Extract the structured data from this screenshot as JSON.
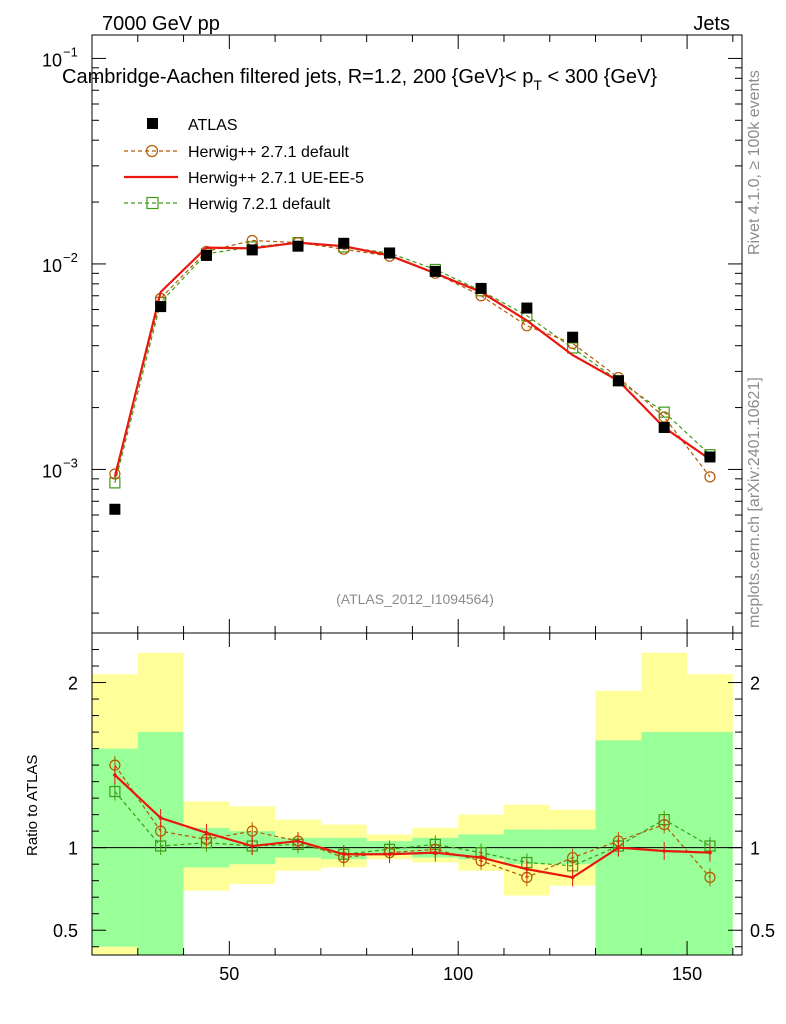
{
  "header": {
    "left": "7000 GeV pp",
    "right": "Jets"
  },
  "side": {
    "rivet": "Rivet 4.1.0, ≥ 100k events",
    "mcplots": "mcplots.cern.ch [arXiv:2401.10621]"
  },
  "chart_data": {
    "type": "line",
    "title": "Cambridge-Aachen filtered jets, R=1.2, 200 {GeV}< p_T < 300 {GeV}",
    "title_parts": {
      "main": "Cambridge-Aachen filtered jets, R=1.2, 200 {GeV}< p",
      "sub": "T",
      "tail": " < 300 {GeV}"
    },
    "watermark": "(ATLAS_2012_I1094564)",
    "x": [
      25,
      35,
      45,
      55,
      65,
      75,
      85,
      95,
      105,
      115,
      125,
      135,
      145,
      155
    ],
    "xlim": [
      20,
      162
    ],
    "xticks": [
      50,
      100,
      150
    ],
    "top": {
      "yscale": "log",
      "ylim": [
        0.00016,
        0.13
      ],
      "yticks": [
        {
          "base": "10",
          "exp": "−1",
          "value": 0.1
        },
        {
          "base": "10",
          "exp": "−2",
          "value": 0.01
        },
        {
          "base": "10",
          "exp": "−3",
          "value": 0.001
        }
      ]
    },
    "ratio": {
      "ylabel": "Ratio to ATLAS",
      "ylim": [
        0.35,
        2.3
      ],
      "yticks": [
        "0.5",
        "1",
        "2"
      ],
      "band_inner": [
        [
          0.4,
          1.6
        ],
        [
          0.35,
          1.7
        ],
        [
          0.88,
          1.12
        ],
        [
          0.9,
          1.1
        ],
        [
          0.94,
          1.06
        ],
        [
          0.93,
          1.06
        ],
        [
          0.96,
          1.04
        ],
        [
          0.94,
          1.06
        ],
        [
          0.93,
          1.08
        ],
        [
          0.9,
          1.11
        ],
        [
          0.9,
          1.11
        ],
        [
          0.35,
          1.65
        ],
        [
          0.35,
          1.7
        ],
        [
          0.35,
          1.7
        ]
      ],
      "band_outer": [
        [
          0.35,
          2.05
        ],
        [
          0.35,
          2.18
        ],
        [
          0.74,
          1.28
        ],
        [
          0.78,
          1.25
        ],
        [
          0.86,
          1.17
        ],
        [
          0.88,
          1.14
        ],
        [
          0.93,
          1.08
        ],
        [
          0.91,
          1.12
        ],
        [
          0.86,
          1.2
        ],
        [
          0.71,
          1.26
        ],
        [
          0.77,
          1.23
        ],
        [
          0.35,
          1.95
        ],
        [
          0.35,
          2.18
        ],
        [
          0.35,
          2.05
        ]
      ]
    },
    "series": [
      {
        "name": "ATLAS",
        "color": "#000000",
        "marker": "square-filled",
        "values": [
          0.00064,
          0.0062,
          0.011,
          0.0117,
          0.0122,
          0.0126,
          0.0113,
          0.0092,
          0.0076,
          0.0061,
          0.0044,
          0.0027,
          0.0016,
          0.00115
        ]
      },
      {
        "name": "Herwig++ 2.7.1 default",
        "color": "#b35900",
        "marker": "circle-open",
        "dash": "dashed",
        "values": [
          0.00095,
          0.0068,
          0.0115,
          0.013,
          0.0127,
          0.0118,
          0.0109,
          0.009,
          0.007,
          0.005,
          0.0041,
          0.0028,
          0.0018,
          0.00092
        ],
        "ratio": [
          1.5,
          1.1,
          1.05,
          1.1,
          1.04,
          0.94,
          0.97,
          0.99,
          0.92,
          0.82,
          0.94,
          1.04,
          1.14,
          0.82
        ]
      },
      {
        "name": "Herwig++ 2.7.1 UE-EE-5",
        "color": "#e8180f",
        "marker": "none",
        "dash": "solid",
        "values": [
          0.00092,
          0.0073,
          0.012,
          0.0119,
          0.0127,
          0.0122,
          0.011,
          0.009,
          0.0073,
          0.0053,
          0.0036,
          0.0027,
          0.0016,
          0.00112
        ],
        "ratio": [
          1.44,
          1.18,
          1.09,
          1.01,
          1.04,
          0.96,
          0.96,
          0.97,
          0.94,
          0.87,
          0.82,
          1.0,
          0.98,
          0.97
        ]
      },
      {
        "name": "Herwig 7.2.1 default",
        "color": "#3f9a14",
        "marker": "square-open",
        "dash": "dashed",
        "values": [
          0.00086,
          0.0065,
          0.0112,
          0.0121,
          0.0127,
          0.0121,
          0.0113,
          0.0094,
          0.0074,
          0.0056,
          0.0039,
          0.0027,
          0.0019,
          0.00118
        ],
        "ratio": [
          1.34,
          1.01,
          1.03,
          1.01,
          1.02,
          0.96,
          0.99,
          1.02,
          0.97,
          0.91,
          0.89,
          1.01,
          1.17,
          1.01
        ]
      }
    ]
  }
}
